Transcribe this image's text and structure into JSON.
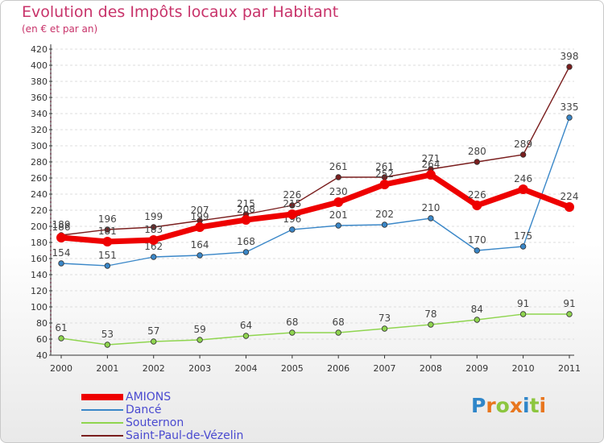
{
  "title": "Evolution des Impôts locaux par Habitant",
  "subtitle": "(en € et par an)",
  "colors": {
    "title": "#c8336a",
    "legend_text": "#4a4ad0",
    "axis": "#333333",
    "grid": "#dddddd"
  },
  "logo": {
    "letters": [
      "P",
      "r",
      "o",
      "x",
      "i",
      "t",
      "i"
    ],
    "colors": [
      "#2f86c9",
      "#e8761e",
      "#8cc63f",
      "#e8761e",
      "#2f86c9",
      "#8cc63f",
      "#e8761e"
    ]
  },
  "chart_data": {
    "type": "line",
    "x": [
      "2000",
      "2001",
      "2002",
      "2003",
      "2004",
      "2005",
      "2006",
      "2007",
      "2008",
      "2009",
      "2010",
      "2011"
    ],
    "ylim": [
      40,
      420
    ],
    "ytick_step": 20,
    "grid": "horizontal dashed",
    "legend_placement": "bottom-left",
    "series": [
      {
        "name": "AMIONS",
        "color": "#ee0000",
        "style": "thick",
        "values": [
          186,
          181,
          183,
          199,
          208,
          215,
          230,
          252,
          264,
          226,
          246,
          224
        ],
        "labels": [
          "186",
          "181",
          "183",
          "199",
          "208",
          "215",
          "230",
          "252",
          "264",
          "226",
          "246",
          "224"
        ]
      },
      {
        "name": "Dancé",
        "color": "#3a87c8",
        "style": "thin",
        "values": [
          154,
          151,
          162,
          164,
          168,
          196,
          201,
          202,
          210,
          170,
          175,
          335
        ],
        "labels": [
          "154",
          "151",
          "162",
          "164",
          "168",
          "196",
          "201",
          "202",
          "210",
          "170",
          "175",
          "335"
        ]
      },
      {
        "name": "Souternon",
        "color": "#8fd54f",
        "style": "thin",
        "values": [
          61,
          53,
          57,
          59,
          64,
          68,
          68,
          73,
          78,
          84,
          91,
          91
        ],
        "labels": [
          "61",
          "53",
          "57",
          "59",
          "64",
          "68",
          "68",
          "73",
          "78",
          "84",
          "91",
          "91"
        ]
      },
      {
        "name": "Saint-Paul-de-Vézelin",
        "color": "#7a1e1e",
        "style": "thin",
        "values": [
          189,
          196,
          199,
          207,
          215,
          226,
          261,
          261,
          271,
          280,
          289,
          398
        ],
        "labels": [
          "189",
          "196",
          "199",
          "207",
          "215",
          "226",
          "261",
          "261",
          "271",
          "280",
          "289",
          "398"
        ]
      }
    ]
  }
}
